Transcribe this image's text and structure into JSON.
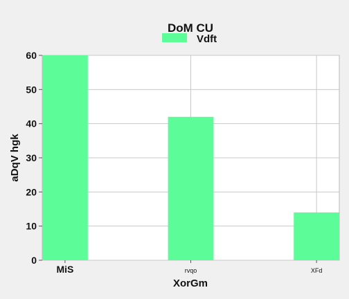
{
  "chart_data": {
    "type": "bar",
    "title": "DoM CU",
    "xlabel": "XorGm",
    "ylabel": "aDqV hgk",
    "categories": [
      "MiS",
      "rvqo",
      "XFd"
    ],
    "series": [
      {
        "name": "Vdft",
        "values": [
          60,
          42,
          14
        ],
        "color": "#5cfd98"
      }
    ],
    "ylim": [
      0,
      60
    ],
    "yticks": [
      "0",
      "10",
      "20",
      "30",
      "40",
      "50",
      "60"
    ],
    "grid": true,
    "legend_position": "top-center"
  }
}
